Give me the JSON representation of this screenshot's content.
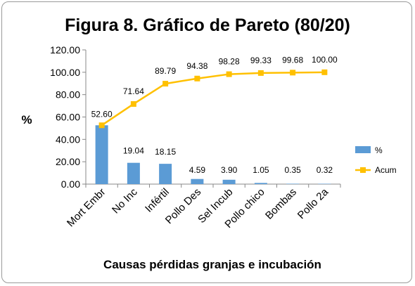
{
  "chart_data": {
    "type": "bar",
    "title": "Figura 8. Gráfico de Pareto (80/20)",
    "xlabel": "Causas pérdidas granjas e incubación",
    "ylabel": "%",
    "ylim": [
      0,
      120
    ],
    "yticks": [
      "0.00",
      "20.00",
      "40.00",
      "60.00",
      "80.00",
      "100.00",
      "120.00"
    ],
    "categories": [
      "Mort Embr",
      "No Inc",
      "Infértil",
      "Pollo Des",
      "Sel Incub",
      "Pollo chico",
      "Bombas",
      "Pollo 2a"
    ],
    "series": [
      {
        "name": "%",
        "type": "bar",
        "color": "#5b9bd5",
        "values": [
          52.6,
          19.04,
          18.15,
          4.59,
          3.9,
          1.05,
          0.35,
          0.32
        ],
        "labels": [
          "52.60",
          "19.04",
          "18.15",
          "4.59",
          "3.90",
          "1.05",
          "0.35",
          "0.32"
        ]
      },
      {
        "name": "Acum",
        "type": "line",
        "color": "#ffc000",
        "values": [
          52.6,
          71.64,
          89.79,
          94.38,
          98.28,
          99.33,
          99.68,
          100.0
        ],
        "labels": [
          "",
          "71.64",
          "89.79",
          "94.38",
          "98.28",
          "99.33",
          "99.68",
          "100.00"
        ]
      }
    ],
    "legend_position": "right",
    "grid": false
  }
}
